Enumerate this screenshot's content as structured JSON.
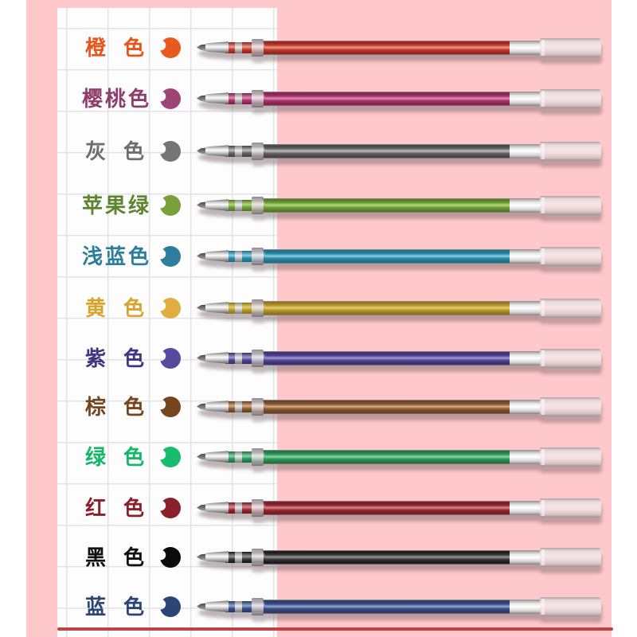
{
  "colors": {
    "background_pink": "#ffc8ca",
    "outer_margin_white": "#ffffff",
    "paper_white": "#fdfdfe",
    "grid_line": "#e2e2e7",
    "bottom_divider": "#bf4245",
    "metal_silver": "#d8d8d8"
  },
  "pens": [
    {
      "name": "orange",
      "label": "橙色",
      "text_color": "#e7551a",
      "dot_color": "#e75a1d",
      "body_color": "#c23a2c",
      "body_dark": "#8c2018",
      "body_light": "#e9998f"
    },
    {
      "name": "cherry",
      "label": "樱桃色",
      "text_color": "#8d3e6b",
      "dot_color": "#9c4574",
      "body_color": "#a83168",
      "body_dark": "#7b1f49",
      "body_light": "#dc8db4"
    },
    {
      "name": "gray",
      "label": "灰色",
      "text_color": "#6e6e6e",
      "dot_color": "#757575",
      "body_color": "#646464",
      "body_dark": "#3f3f3f",
      "body_light": "#bdbdbd"
    },
    {
      "name": "apple-green",
      "label": "苹果绿",
      "text_color": "#5d8530",
      "dot_color": "#7aa03c",
      "body_color": "#6fa039",
      "body_dark": "#4d7621",
      "body_light": "#b6d87d"
    },
    {
      "name": "light-blue",
      "label": "浅蓝色",
      "text_color": "#2d7e9c",
      "dot_color": "#2d7e9c",
      "body_color": "#2a8aa8",
      "body_dark": "#186a85",
      "body_light": "#8ed0e0"
    },
    {
      "name": "yellow",
      "label": "黄色",
      "text_color": "#d9a42e",
      "dot_color": "#dfae3e",
      "body_color": "#b8992f",
      "body_dark": "#8a6f1c",
      "body_light": "#e4cd73"
    },
    {
      "name": "purple",
      "label": "紫色",
      "text_color": "#413580",
      "dot_color": "#564a9c",
      "body_color": "#4f4492",
      "body_dark": "#352b6a",
      "body_light": "#a49bd0"
    },
    {
      "name": "brown",
      "label": "棕色",
      "text_color": "#74451f",
      "dot_color": "#74451f",
      "body_color": "#8a5c35",
      "body_dark": "#613c1d",
      "body_light": "#d3b089"
    },
    {
      "name": "green",
      "label": "绿色",
      "text_color": "#12b868",
      "dot_color": "#17bd6d",
      "body_color": "#2e9759",
      "body_dark": "#1b6e3d",
      "body_light": "#8fd4ab"
    },
    {
      "name": "red",
      "label": "红色",
      "text_color": "#8a2029",
      "dot_color": "#8a2029",
      "body_color": "#97292f",
      "body_dark": "#6d181e",
      "body_light": "#d98a8d"
    },
    {
      "name": "black",
      "label": "黑色",
      "text_color": "#101010",
      "dot_color": "#0b0b0b",
      "body_color": "#383838",
      "body_dark": "#121212",
      "body_light": "#969696"
    },
    {
      "name": "blue",
      "label": "蓝色",
      "text_color": "#2b4577",
      "dot_color": "#2b4577",
      "body_color": "#3a4f88",
      "body_dark": "#253561",
      "body_light": "#96a7d0"
    }
  ]
}
